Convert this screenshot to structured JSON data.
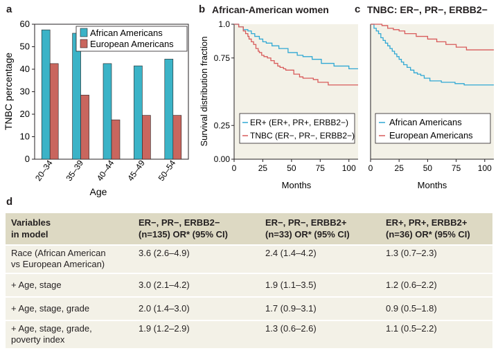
{
  "panels": {
    "a": {
      "letter": "a",
      "chart_data": {
        "type": "bar",
        "categories": [
          "20–34",
          "35–39",
          "40–44",
          "45–49",
          "50–54"
        ],
        "series": [
          {
            "name": "African Americans",
            "color": "#3bb3c7",
            "values": [
              57.5,
              56,
              42.5,
              41.5,
              44.5
            ]
          },
          {
            "name": "European Americans",
            "color": "#c9665e",
            "values": [
              42.5,
              28.5,
              17.5,
              19.5,
              19.5
            ]
          }
        ],
        "ylabel": "TNBC percentage",
        "xlabel": "Age",
        "ylim": [
          0,
          60
        ],
        "yticks": [
          "0",
          "10",
          "20",
          "30",
          "40",
          "50",
          "60"
        ],
        "legend": "top-right"
      }
    },
    "b": {
      "letter": "b",
      "title": "African-American women",
      "chart_data": {
        "type": "line",
        "step": true,
        "xlabel": "Months",
        "ylabel": "Survival distribution fraction",
        "xlim": [
          0,
          108
        ],
        "ylim": [
          0,
          1.0
        ],
        "xticks": [
          "0",
          "25",
          "50",
          "75",
          "100"
        ],
        "yticks": [
          "0.00",
          "0.25",
          "0.75",
          "1.0"
        ],
        "series": [
          {
            "name": "ER+ (ER+, PR+, ERBB2−)",
            "color": "#2fa8d4",
            "points": [
              [
                0,
                1
              ],
              [
                4,
                0.98
              ],
              [
                8,
                0.96
              ],
              [
                12,
                0.95
              ],
              [
                15,
                0.93
              ],
              [
                18,
                0.91
              ],
              [
                22,
                0.89
              ],
              [
                25,
                0.87
              ],
              [
                28,
                0.86
              ],
              [
                31,
                0.86
              ],
              [
                33,
                0.84
              ],
              [
                37,
                0.84
              ],
              [
                39,
                0.82
              ],
              [
                44,
                0.82
              ],
              [
                47,
                0.79
              ],
              [
                52,
                0.79
              ],
              [
                55,
                0.77
              ],
              [
                59,
                0.77
              ],
              [
                60,
                0.76
              ],
              [
                64,
                0.76
              ],
              [
                68,
                0.74
              ],
              [
                72,
                0.74
              ],
              [
                76,
                0.71
              ],
              [
                84,
                0.71
              ],
              [
                87,
                0.69
              ],
              [
                96,
                0.69
              ],
              [
                100,
                0.67
              ],
              [
                108,
                0.67
              ]
            ]
          },
          {
            "name": "TNBC (ER−, PR−, ERBB2−)",
            "color": "#d85a5a",
            "points": [
              [
                0,
                1
              ],
              [
                4,
                0.98
              ],
              [
                8,
                0.95
              ],
              [
                10,
                0.93
              ],
              [
                12,
                0.91
              ],
              [
                13,
                0.89
              ],
              [
                15,
                0.87
              ],
              [
                17,
                0.85
              ],
              [
                19,
                0.82
              ],
              [
                21,
                0.8
              ],
              [
                22,
                0.79
              ],
              [
                24,
                0.77
              ],
              [
                26,
                0.76
              ],
              [
                29,
                0.75
              ],
              [
                32,
                0.73
              ],
              [
                35,
                0.71
              ],
              [
                38,
                0.69
              ],
              [
                40,
                0.68
              ],
              [
                43,
                0.67
              ],
              [
                45,
                0.66
              ],
              [
                47,
                0.66
              ],
              [
                52,
                0.63
              ],
              [
                57,
                0.61
              ],
              [
                60,
                0.6
              ],
              [
                64,
                0.6
              ],
              [
                69,
                0.59
              ],
              [
                73,
                0.57
              ],
              [
                80,
                0.57
              ],
              [
                82,
                0.55
              ],
              [
                108,
                0.55
              ]
            ]
          }
        ],
        "legend": "bottom-right"
      }
    },
    "c": {
      "letter": "c",
      "title": "TNBC: ER−, PR−, ERBB2−",
      "chart_data": {
        "type": "line",
        "step": true,
        "xlabel": "Months",
        "xlim": [
          0,
          108
        ],
        "ylim": [
          0,
          1.0
        ],
        "xticks": [
          "0",
          "25",
          "50",
          "75",
          "100"
        ],
        "series": [
          {
            "name": "African Americans",
            "color": "#2fa8d4",
            "points": [
              [
                0,
                1
              ],
              [
                3,
                0.97
              ],
              [
                5,
                0.95
              ],
              [
                7,
                0.93
              ],
              [
                9,
                0.9
              ],
              [
                11,
                0.88
              ],
              [
                13,
                0.86
              ],
              [
                15,
                0.84
              ],
              [
                17,
                0.82
              ],
              [
                19,
                0.8
              ],
              [
                21,
                0.78
              ],
              [
                23,
                0.76
              ],
              [
                25,
                0.74
              ],
              [
                27,
                0.72
              ],
              [
                29,
                0.7
              ],
              [
                32,
                0.68
              ],
              [
                35,
                0.66
              ],
              [
                38,
                0.64
              ],
              [
                41,
                0.63
              ],
              [
                44,
                0.62
              ],
              [
                47,
                0.6
              ],
              [
                52,
                0.58
              ],
              [
                58,
                0.58
              ],
              [
                62,
                0.57
              ],
              [
                70,
                0.57
              ],
              [
                74,
                0.56
              ],
              [
                80,
                0.56
              ],
              [
                82,
                0.55
              ],
              [
                108,
                0.55
              ]
            ]
          },
          {
            "name": "European Americans",
            "color": "#d85a5a",
            "points": [
              [
                0,
                1
              ],
              [
                10,
                0.99
              ],
              [
                15,
                0.97
              ],
              [
                20,
                0.96
              ],
              [
                25,
                0.95
              ],
              [
                30,
                0.93
              ],
              [
                35,
                0.93
              ],
              [
                40,
                0.91
              ],
              [
                45,
                0.91
              ],
              [
                50,
                0.89
              ],
              [
                55,
                0.89
              ],
              [
                58,
                0.87
              ],
              [
                63,
                0.87
              ],
              [
                66,
                0.85
              ],
              [
                72,
                0.85
              ],
              [
                75,
                0.83
              ],
              [
                80,
                0.83
              ],
              [
                84,
                0.81
              ],
              [
                108,
                0.81
              ]
            ]
          }
        ],
        "legend": "bottom-right"
      }
    }
  },
  "table": {
    "letter": "d",
    "headers": [
      [
        "Variables",
        "in model"
      ],
      [
        "ER−, PR−, ERBB2−",
        "(n=135) OR* (95% CI)"
      ],
      [
        "ER−, PR−, ERBB2+",
        "(n=33) OR* (95% CI)"
      ],
      [
        "ER+, PR+, ERBB2+",
        "(n=36) OR* (95% CI)"
      ]
    ],
    "rows": [
      {
        "label": [
          "Race (African American",
          "vs European American)"
        ],
        "values": [
          "3.6 (2.6–4.9)",
          "2.4 (1.4–4.2)",
          "1.3 (0.7–2.3)"
        ]
      },
      {
        "label": [
          "+ Age, stage"
        ],
        "values": [
          "3.0 (2.1–4.2)",
          "1.9 (1.1–3.5)",
          "1.2 (0.6–2.2)"
        ]
      },
      {
        "label": [
          "+ Age, stage, grade"
        ],
        "values": [
          "2.0 (1.4–3.0)",
          "1.7 (0.9–3.1)",
          "0.9 (0.5–1.8)"
        ]
      },
      {
        "label": [
          "+ Age, stage, grade,",
          "poverty index"
        ],
        "values": [
          "1.9 (1.2–2.9)",
          "1.3 (0.6–2.6)",
          "1.1 (0.5–2.2)"
        ]
      }
    ]
  }
}
